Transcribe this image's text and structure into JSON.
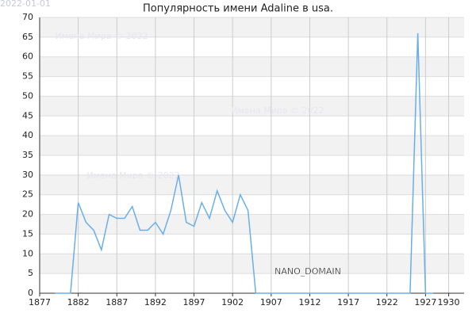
{
  "chart_data": {
    "type": "line",
    "title": "Популярность имени Adaline в usa.",
    "date_stamp": "2022-01-01",
    "domain_label": "NANO_DOMAIN",
    "watermarks": [
      "Имена Мира © 2022",
      "Имена Мира © 2022",
      "Имена Мира © 2022"
    ],
    "x": [
      1879,
      1880,
      1881,
      1882,
      1883,
      1884,
      1885,
      1886,
      1887,
      1888,
      1889,
      1890,
      1891,
      1892,
      1893,
      1894,
      1895,
      1896,
      1897,
      1898,
      1899,
      1900,
      1901,
      1902,
      1903,
      1904,
      1905,
      1906,
      1907,
      1908,
      1909,
      1910,
      1911,
      1912,
      1913,
      1914,
      1915,
      1916,
      1917,
      1918,
      1919,
      1920,
      1921,
      1922,
      1923,
      1924,
      1925,
      1926,
      1927,
      1928
    ],
    "series": [
      {
        "name": "Adaline",
        "color": "#6aaee8",
        "values": [
          0,
          0,
          0,
          23,
          18,
          16,
          11,
          20,
          19,
          19,
          22,
          16,
          16,
          18,
          15,
          21,
          30,
          18,
          17,
          23,
          19,
          26,
          21,
          18,
          25,
          21,
          0,
          0,
          0,
          0,
          0,
          0,
          0,
          0,
          0,
          0,
          0,
          0,
          0,
          0,
          0,
          0,
          0,
          0,
          0,
          0,
          0,
          66,
          0,
          0
        ]
      }
    ],
    "xlim": [
      1877,
      1932
    ],
    "xticks": [
      1877,
      1882,
      1887,
      1892,
      1897,
      1902,
      1907,
      1912,
      1917,
      1922,
      1927,
      1930
    ],
    "ylim": [
      0,
      70
    ],
    "yticks": [
      0,
      5,
      10,
      15,
      20,
      25,
      30,
      35,
      40,
      45,
      50,
      55,
      60,
      65,
      70
    ],
    "grid": true
  }
}
